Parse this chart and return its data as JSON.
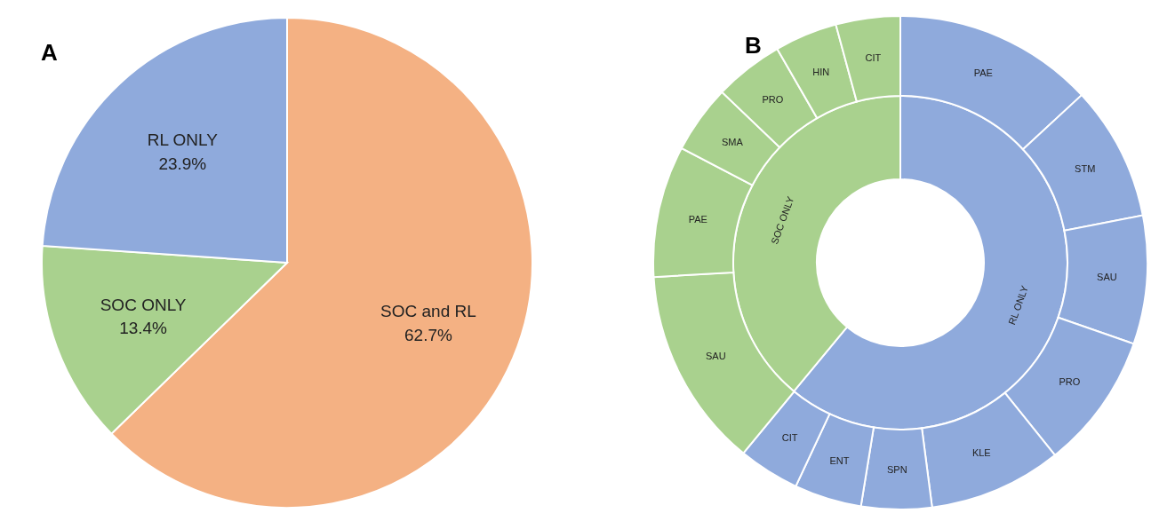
{
  "chart_data": [
    {
      "type": "pie",
      "title": "A",
      "categories": [
        "SOC and RL",
        "SOC ONLY",
        "RL ONLY"
      ],
      "values": [
        62.7,
        13.4,
        23.9
      ],
      "colors": [
        "#f4b183",
        "#a9d18e",
        "#8faadc"
      ],
      "value_labels": [
        "62.7%",
        "13.4%",
        "23.9%"
      ]
    },
    {
      "type": "donut",
      "title": "B",
      "categories": [
        "RL ONLY",
        "SOC ONLY"
      ],
      "values": [
        61,
        39
      ],
      "colors": [
        "#8faadc",
        "#a9d18e"
      ]
    },
    {
      "type": "donut",
      "categories": [
        "PAE",
        "STM",
        "SAU",
        "PRO",
        "KLE",
        "SPN",
        "ENT",
        "CIT",
        "SAU",
        "PAE",
        "SMA",
        "PRO",
        "HIN",
        "CIT"
      ],
      "values": [
        13.1,
        8.8,
        8.4,
        8.9,
        8.7,
        4.6,
        4.4,
        4.0,
        13.1,
        8.6,
        4.47,
        4.53,
        4.1,
        4.2
      ],
      "colors": [
        "#8faadc",
        "#8faadc",
        "#8faadc",
        "#8faadc",
        "#8faadc",
        "#8faadc",
        "#8faadc",
        "#8faadc",
        "#a9d18e",
        "#a9d18e",
        "#a9d18e",
        "#a9d18e",
        "#a9d18e",
        "#a9d18e"
      ]
    }
  ]
}
